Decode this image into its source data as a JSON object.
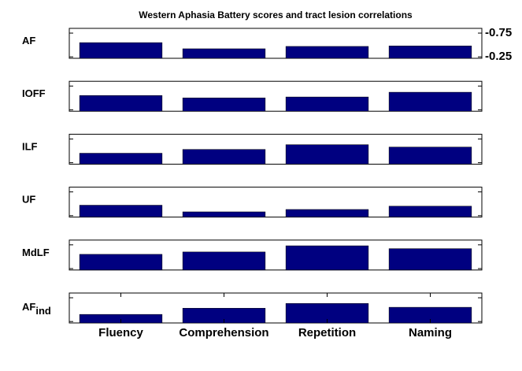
{
  "chart_data": {
    "type": "bar",
    "title": "Western Aphasia Battery scores and tract lesion correlations",
    "categories": [
      "Fluency",
      "Comprehension",
      "Repetition",
      "Naming"
    ],
    "color": "#000080",
    "ylim": [
      -0.22,
      -0.85
    ],
    "yticks": [
      -0.75,
      -0.25
    ],
    "panels": [
      {
        "label": "AF",
        "values": [
          -0.55,
          -0.42,
          -0.47,
          -0.48
        ]
      },
      {
        "label": "IOFF",
        "values": [
          -0.55,
          -0.5,
          -0.52,
          -0.62
        ]
      },
      {
        "label": "ILF",
        "values": [
          -0.45,
          -0.53,
          -0.63,
          -0.58
        ]
      },
      {
        "label": "UF",
        "values": [
          -0.47,
          -0.33,
          -0.38,
          -0.45
        ]
      },
      {
        "label": "MdLF",
        "values": [
          -0.55,
          -0.6,
          -0.73,
          -0.67
        ]
      },
      {
        "label": "AF",
        "label_sub": "ind",
        "values": [
          -0.4,
          -0.53,
          -0.63,
          -0.55
        ]
      }
    ]
  }
}
